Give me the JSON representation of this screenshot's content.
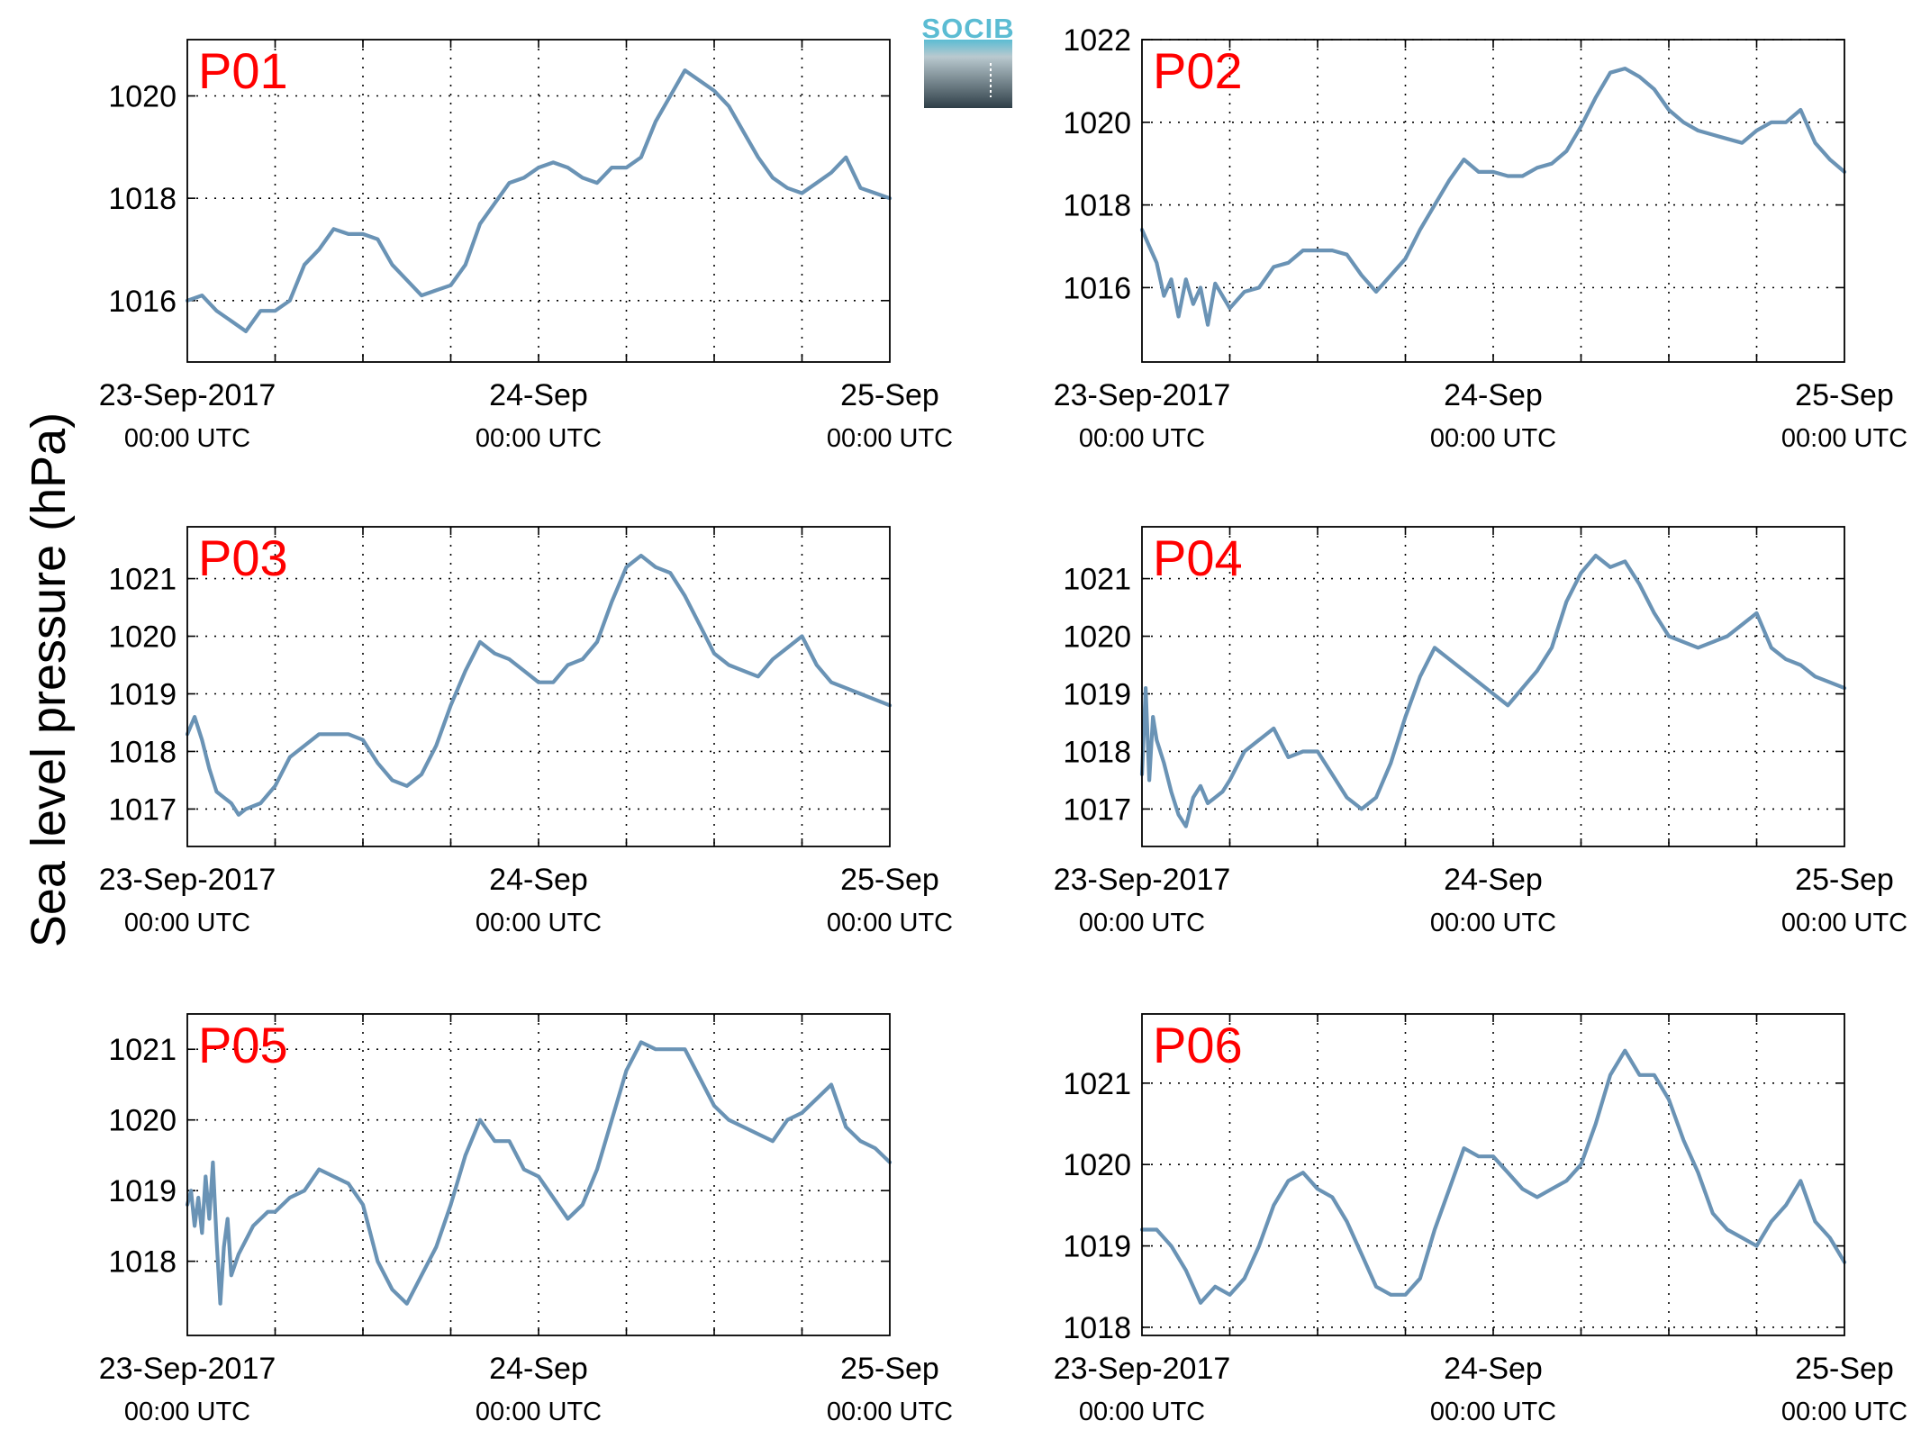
{
  "figure": {
    "ylabel": "Sea level pressure (hPa)",
    "logo_text": "SOCIB"
  },
  "colors": {
    "line": "#6a93b5",
    "label": "#ff0000",
    "axis": "#000000",
    "grid": "#000000",
    "logo_top": "#5bbcd3",
    "logo_bottom": "#2f3f48"
  },
  "chart_data": [
    {
      "type": "line",
      "title": "P01",
      "xlabel": "",
      "ylabel": "Sea level pressure (hPa)",
      "xlim": [
        0,
        48
      ],
      "ylim": [
        1014.8,
        1021.1
      ],
      "yticks": [
        1016,
        1018,
        1020
      ],
      "xticks": [
        {
          "x": 0,
          "label": "23-Sep-2017",
          "sub": "00:00 UTC"
        },
        {
          "x": 24,
          "label": "24-Sep",
          "sub": "00:00 UTC"
        },
        {
          "x": 48,
          "label": "25-Sep",
          "sub": "00:00 UTC"
        }
      ],
      "grid": true,
      "x": [
        0,
        1,
        2,
        3,
        4,
        5,
        6,
        7,
        8,
        9,
        10,
        11,
        12,
        13,
        14,
        15,
        16,
        17,
        18,
        19,
        20,
        21,
        22,
        23,
        24,
        25,
        26,
        27,
        28,
        29,
        30,
        31,
        32,
        33,
        34,
        35,
        36,
        37,
        38,
        39,
        40,
        41,
        42,
        43,
        44,
        45,
        46,
        47,
        48
      ],
      "series": [
        {
          "values": [
            1016.0,
            1016.1,
            1015.8,
            1015.6,
            1015.4,
            1015.8,
            1015.8,
            1016.0,
            1016.7,
            1017.0,
            1017.4,
            1017.3,
            1017.3,
            1017.2,
            1016.7,
            1016.4,
            1016.1,
            1016.2,
            1016.3,
            1016.7,
            1017.5,
            1017.9,
            1018.3,
            1018.4,
            1018.6,
            1018.7,
            1018.6,
            1018.4,
            1018.3,
            1018.6,
            1018.6,
            1018.8,
            1019.5,
            1020.0,
            1020.5,
            1020.3,
            1020.1,
            1019.8,
            1019.3,
            1018.8,
            1018.4,
            1018.2,
            1018.1,
            1018.3,
            1018.5,
            1018.8,
            1018.2,
            1018.1,
            1018.0
          ]
        }
      ]
    },
    {
      "type": "line",
      "title": "P02",
      "xlabel": "",
      "ylabel": "",
      "xlim": [
        0,
        48
      ],
      "ylim": [
        1014.2,
        1022.0
      ],
      "yticks": [
        1016,
        1018,
        1020,
        1022
      ],
      "xticks": [
        {
          "x": 0,
          "label": "23-Sep-2017",
          "sub": "00:00 UTC"
        },
        {
          "x": 24,
          "label": "24-Sep",
          "sub": "00:00 UTC"
        },
        {
          "x": 48,
          "label": "25-Sep",
          "sub": "00:00 UTC"
        }
      ],
      "grid": true,
      "x": [
        0,
        0.5,
        1,
        1.5,
        2,
        2.5,
        3,
        3.5,
        4,
        4.5,
        5,
        6,
        7,
        8,
        9,
        10,
        11,
        12,
        13,
        14,
        15,
        16,
        17,
        18,
        19,
        20,
        21,
        22,
        23,
        24,
        25,
        26,
        27,
        28,
        29,
        30,
        31,
        32,
        33,
        34,
        35,
        36,
        37,
        38,
        39,
        40,
        41,
        42,
        43,
        44,
        45,
        46,
        47,
        48
      ],
      "series": [
        {
          "values": [
            1017.4,
            1017.0,
            1016.6,
            1015.8,
            1016.2,
            1015.3,
            1016.2,
            1015.6,
            1016.0,
            1015.1,
            1016.1,
            1015.5,
            1015.9,
            1016.0,
            1016.5,
            1016.6,
            1016.9,
            1016.9,
            1016.9,
            1016.8,
            1016.3,
            1015.9,
            1016.3,
            1016.7,
            1017.4,
            1018.0,
            1018.6,
            1019.1,
            1018.8,
            1018.8,
            1018.7,
            1018.7,
            1018.9,
            1019.0,
            1019.3,
            1019.9,
            1020.6,
            1021.2,
            1021.3,
            1021.1,
            1020.8,
            1020.3,
            1020.0,
            1019.8,
            1019.7,
            1019.6,
            1019.5,
            1019.8,
            1020.0,
            1020.0,
            1020.3,
            1019.5,
            1019.1,
            1018.8
          ]
        }
      ]
    },
    {
      "type": "line",
      "title": "P03",
      "xlabel": "",
      "ylabel": "",
      "xlim": [
        0,
        48
      ],
      "ylim": [
        1016.35,
        1021.9
      ],
      "yticks": [
        1017,
        1018,
        1019,
        1020,
        1021
      ],
      "xticks": [
        {
          "x": 0,
          "label": "23-Sep-2017",
          "sub": "00:00 UTC"
        },
        {
          "x": 24,
          "label": "24-Sep",
          "sub": "00:00 UTC"
        },
        {
          "x": 48,
          "label": "25-Sep",
          "sub": "00:00 UTC"
        }
      ],
      "grid": true,
      "x": [
        0,
        0.5,
        1,
        1.5,
        2,
        2.5,
        3,
        3.5,
        4,
        5,
        6,
        7,
        8,
        9,
        10,
        11,
        12,
        13,
        14,
        15,
        16,
        17,
        18,
        19,
        20,
        21,
        22,
        23,
        24,
        25,
        26,
        27,
        28,
        29,
        30,
        31,
        32,
        33,
        34,
        35,
        36,
        37,
        38,
        39,
        40,
        41,
        42,
        43,
        44,
        45,
        46,
        47,
        48
      ],
      "series": [
        {
          "values": [
            1018.3,
            1018.6,
            1018.2,
            1017.7,
            1017.3,
            1017.2,
            1017.1,
            1016.9,
            1017.0,
            1017.1,
            1017.4,
            1017.9,
            1018.1,
            1018.3,
            1018.3,
            1018.3,
            1018.2,
            1017.8,
            1017.5,
            1017.4,
            1017.6,
            1018.1,
            1018.8,
            1019.4,
            1019.9,
            1019.7,
            1019.6,
            1019.4,
            1019.2,
            1019.2,
            1019.5,
            1019.6,
            1019.9,
            1020.6,
            1021.2,
            1021.4,
            1021.2,
            1021.1,
            1020.7,
            1020.2,
            1019.7,
            1019.5,
            1019.4,
            1019.3,
            1019.6,
            1019.8,
            1020.0,
            1019.5,
            1019.2,
            1019.1,
            1019.0,
            1018.9,
            1018.8
          ]
        }
      ]
    },
    {
      "type": "line",
      "title": "P04",
      "xlabel": "",
      "ylabel": "",
      "xlim": [
        0,
        48
      ],
      "ylim": [
        1016.35,
        1021.9
      ],
      "yticks": [
        1017,
        1018,
        1019,
        1020,
        1021
      ],
      "xticks": [
        {
          "x": 0,
          "label": "23-Sep-2017",
          "sub": "00:00 UTC"
        },
        {
          "x": 24,
          "label": "24-Sep",
          "sub": "00:00 UTC"
        },
        {
          "x": 48,
          "label": "25-Sep",
          "sub": "00:00 UTC"
        }
      ],
      "grid": true,
      "x": [
        0,
        0.25,
        0.5,
        0.75,
        1,
        1.5,
        2,
        2.5,
        3,
        3.5,
        4,
        4.5,
        5,
        5.5,
        6,
        7,
        8,
        9,
        10,
        11,
        12,
        13,
        14,
        15,
        16,
        17,
        18,
        19,
        20,
        21,
        22,
        23,
        24,
        25,
        26,
        27,
        28,
        29,
        30,
        31,
        32,
        33,
        34,
        35,
        36,
        37,
        38,
        39,
        40,
        41,
        42,
        43,
        44,
        45,
        46,
        47,
        48
      ],
      "series": [
        {
          "values": [
            1017.6,
            1019.1,
            1017.5,
            1018.6,
            1018.2,
            1017.8,
            1017.3,
            1016.9,
            1016.7,
            1017.2,
            1017.4,
            1017.1,
            1017.2,
            1017.3,
            1017.5,
            1018.0,
            1018.2,
            1018.4,
            1017.9,
            1018.0,
            1018.0,
            1017.6,
            1017.2,
            1017.0,
            1017.2,
            1017.8,
            1018.6,
            1019.3,
            1019.8,
            1019.6,
            1019.4,
            1019.2,
            1019.0,
            1018.8,
            1019.1,
            1019.4,
            1019.8,
            1020.6,
            1021.1,
            1021.4,
            1021.2,
            1021.3,
            1020.9,
            1020.4,
            1020.0,
            1019.9,
            1019.8,
            1019.9,
            1020.0,
            1020.2,
            1020.4,
            1019.8,
            1019.6,
            1019.5,
            1019.3,
            1019.2,
            1019.1
          ]
        }
      ]
    },
    {
      "type": "line",
      "title": "P05",
      "xlabel": "",
      "ylabel": "",
      "xlim": [
        0,
        48
      ],
      "ylim": [
        1016.95,
        1021.5
      ],
      "yticks": [
        1018,
        1019,
        1020,
        1021
      ],
      "xticks": [
        {
          "x": 0,
          "label": "23-Sep-2017",
          "sub": "00:00 UTC"
        },
        {
          "x": 24,
          "label": "24-Sep",
          "sub": "00:00 UTC"
        },
        {
          "x": 48,
          "label": "25-Sep",
          "sub": "00:00 UTC"
        }
      ],
      "grid": true,
      "x": [
        0,
        0.25,
        0.5,
        0.75,
        1,
        1.25,
        1.5,
        1.75,
        2,
        2.25,
        2.5,
        2.75,
        3,
        3.5,
        4,
        4.5,
        5,
        5.5,
        6,
        7,
        8,
        9,
        10,
        11,
        12,
        13,
        14,
        15,
        16,
        17,
        18,
        19,
        20,
        21,
        22,
        23,
        24,
        25,
        26,
        27,
        28,
        29,
        30,
        31,
        32,
        33,
        34,
        35,
        36,
        37,
        38,
        39,
        40,
        41,
        42,
        43,
        44,
        45,
        46,
        47,
        48
      ],
      "series": [
        {
          "values": [
            1018.8,
            1019.0,
            1018.5,
            1018.9,
            1018.4,
            1019.2,
            1018.6,
            1019.4,
            1018.3,
            1017.4,
            1018.2,
            1018.6,
            1017.8,
            1018.1,
            1018.3,
            1018.5,
            1018.6,
            1018.7,
            1018.7,
            1018.9,
            1019.0,
            1019.3,
            1019.2,
            1019.1,
            1018.8,
            1018.0,
            1017.6,
            1017.4,
            1017.8,
            1018.2,
            1018.8,
            1019.5,
            1020.0,
            1019.7,
            1019.7,
            1019.3,
            1019.2,
            1018.9,
            1018.6,
            1018.8,
            1019.3,
            1020.0,
            1020.7,
            1021.1,
            1021.0,
            1021.0,
            1021.0,
            1020.6,
            1020.2,
            1020.0,
            1019.9,
            1019.8,
            1019.7,
            1020.0,
            1020.1,
            1020.3,
            1020.5,
            1019.9,
            1019.7,
            1019.6,
            1019.4
          ]
        }
      ]
    },
    {
      "type": "line",
      "title": "P06",
      "xlabel": "",
      "ylabel": "",
      "xlim": [
        0,
        48
      ],
      "ylim": [
        1017.9,
        1021.85
      ],
      "yticks": [
        1018,
        1019,
        1020,
        1021
      ],
      "xticks": [
        {
          "x": 0,
          "label": "23-Sep-2017",
          "sub": "00:00 UTC"
        },
        {
          "x": 24,
          "label": "24-Sep",
          "sub": "00:00 UTC"
        },
        {
          "x": 48,
          "label": "25-Sep",
          "sub": "00:00 UTC"
        }
      ],
      "grid": true,
      "x": [
        0,
        1,
        2,
        3,
        4,
        5,
        6,
        7,
        8,
        9,
        10,
        11,
        12,
        13,
        14,
        15,
        16,
        17,
        18,
        19,
        20,
        21,
        22,
        23,
        24,
        25,
        26,
        27,
        28,
        29,
        30,
        31,
        32,
        33,
        34,
        35,
        36,
        37,
        38,
        39,
        40,
        41,
        42,
        43,
        44,
        45,
        46,
        47,
        48
      ],
      "series": [
        {
          "values": [
            1019.2,
            1019.2,
            1019.0,
            1018.7,
            1018.3,
            1018.5,
            1018.4,
            1018.6,
            1019.0,
            1019.5,
            1019.8,
            1019.9,
            1019.7,
            1019.6,
            1019.3,
            1018.9,
            1018.5,
            1018.4,
            1018.4,
            1018.6,
            1019.2,
            1019.7,
            1020.2,
            1020.1,
            1020.1,
            1019.9,
            1019.7,
            1019.6,
            1019.7,
            1019.8,
            1020.0,
            1020.5,
            1021.1,
            1021.4,
            1021.1,
            1021.1,
            1020.8,
            1020.3,
            1019.9,
            1019.4,
            1019.2,
            1019.1,
            1019.0,
            1019.3,
            1019.5,
            1019.8,
            1019.3,
            1019.1,
            1018.8
          ]
        }
      ]
    }
  ]
}
